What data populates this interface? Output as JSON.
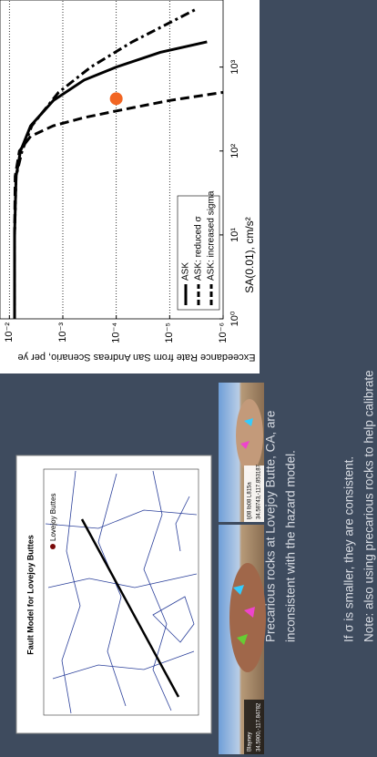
{
  "chart_data": {
    "type": "line",
    "x_label": "SA(0.01), cm/s²",
    "y_label": "Exceedance Rate from San Andreas Scenario, per ye",
    "xscale": "log",
    "yscale": "log",
    "xlim": [
      1,
      6300
    ],
    "ylim": [
      1e-06,
      0.015
    ],
    "xticks": [
      {
        "value": 1,
        "label": "10⁰"
      },
      {
        "value": 10,
        "label": "10¹"
      },
      {
        "value": 100,
        "label": "10²"
      },
      {
        "value": 1000,
        "label": "10³"
      }
    ],
    "yticks": [
      {
        "value": 0.01,
        "label": "10⁻²"
      },
      {
        "value": 0.001,
        "label": "10⁻³"
      },
      {
        "value": 0.0001,
        "label": "10⁻⁴"
      },
      {
        "value": 1e-05,
        "label": "10⁻⁵"
      },
      {
        "value": 1e-06,
        "label": "10⁻⁶"
      }
    ],
    "grid": true,
    "legend": "lower left",
    "series": [
      {
        "name": "ASK",
        "color": "#000000",
        "dash": "solid",
        "x": [
          1,
          10,
          50,
          100,
          200,
          400,
          700,
          1000,
          1500,
          2000
        ],
        "values": [
          0.008,
          0.008,
          0.0075,
          0.0062,
          0.004,
          0.0015,
          0.0004,
          0.0001,
          1.5e-05,
          2e-06
        ]
      },
      {
        "name": "ASK: reduced σ",
        "color": "#000000",
        "dash": "dashed",
        "x": [
          1,
          10,
          50,
          100,
          150,
          200,
          250,
          300,
          400,
          500
        ],
        "values": [
          0.008,
          0.008,
          0.0078,
          0.0065,
          0.004,
          0.0015,
          0.0004,
          0.0001,
          1e-05,
          1e-06
        ]
      },
      {
        "name": "ASK: increased sigma",
        "color": "#000000",
        "dash": "dashdot",
        "x": [
          1,
          10,
          50,
          100,
          200,
          500,
          1000,
          2000,
          5000
        ],
        "values": [
          0.008,
          0.008,
          0.0075,
          0.0058,
          0.0038,
          0.0012,
          0.0003,
          5e-05,
          3e-06
        ]
      }
    ],
    "markers": {
      "color": "#f26522",
      "x": [
        420
      ],
      "values": [
        0.0001
      ]
    }
  },
  "slide": {
    "bullets": [
      "Precarious rocks at Lovejoy Butte, CA, are",
      "inconsistent with the hazard model.",
      "If σ is smaller, they are consistent.",
      "Note: also using precarious rocks to help calibrate"
    ],
    "map": {
      "title": "Fault Model for Lovejoy Buttes",
      "label": "Lovejoy Buttes"
    },
    "photos": [
      {
        "name": "Blayney",
        "coords": "34.5900,-117.84782"
      },
      {
        "name": "lj08 lb08 L815a",
        "coords": "34.58743,-117.853187"
      }
    ]
  }
}
